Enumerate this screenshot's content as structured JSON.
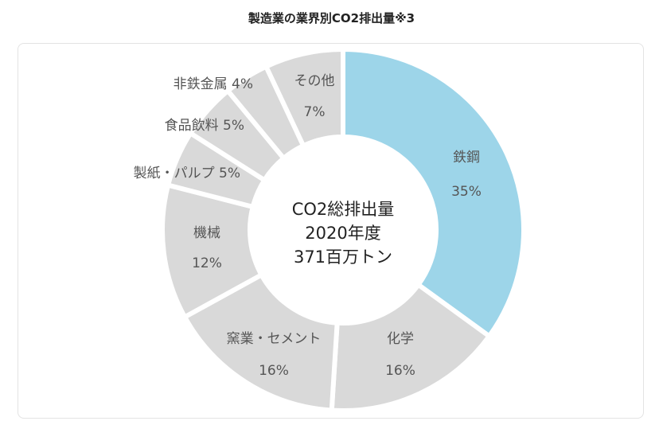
{
  "page": {
    "title": "製造業の業界別CO2排出量※3"
  },
  "chart_data": {
    "type": "pie",
    "subtype": "donut",
    "title": "製造業の業界別CO2排出量※3",
    "center_text": [
      "CO2総排出量",
      "2020年度",
      "371百万トン"
    ],
    "slices": [
      {
        "name": "鉄鋼",
        "value": 35,
        "label_lines": [
          "鉄鋼",
          "35%"
        ],
        "color": "#9dd5e9"
      },
      {
        "name": "化学",
        "value": 16,
        "label_lines": [
          "化学",
          "16%"
        ],
        "color": "#d9d9d9"
      },
      {
        "name": "窯業・セメント",
        "value": 16,
        "label_lines": [
          "窯業・セメント",
          "16%"
        ],
        "color": "#d9d9d9"
      },
      {
        "name": "機械",
        "value": 12,
        "label_lines": [
          "機械",
          "12%"
        ],
        "color": "#d9d9d9"
      },
      {
        "name": "製紙・パルプ",
        "value": 5,
        "label_lines": [
          "製紙・パルプ 5%"
        ],
        "color": "#d9d9d9"
      },
      {
        "name": "食品飲料",
        "value": 5,
        "label_lines": [
          "食品飲料 5%"
        ],
        "color": "#d9d9d9"
      },
      {
        "name": "非鉄金属",
        "value": 4,
        "label_lines": [
          "非鉄金属 4%"
        ],
        "color": "#d9d9d9"
      },
      {
        "name": "その他",
        "value": 7,
        "label_lines": [
          "その他",
          "7%"
        ],
        "color": "#d9d9d9"
      }
    ],
    "legend": "none"
  }
}
